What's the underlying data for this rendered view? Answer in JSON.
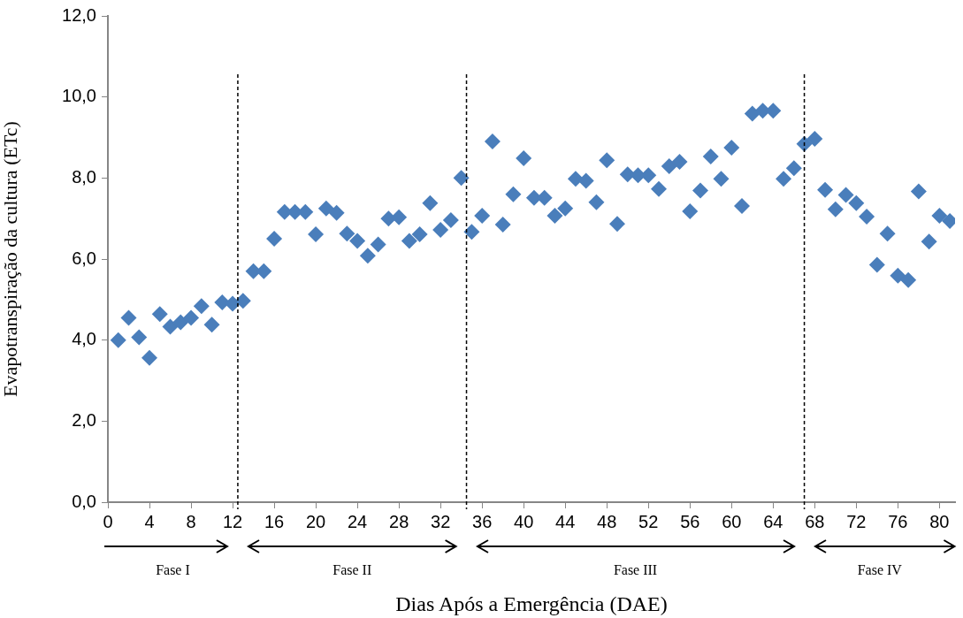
{
  "chart_data": {
    "type": "scatter",
    "xlabel": "Dias Após a Emergência (DAE)",
    "ylabel": "Evapotranspiração da cultura (ETc)",
    "x": [
      1,
      2,
      3,
      4,
      5,
      6,
      7,
      8,
      9,
      10,
      11,
      12,
      13,
      14,
      15,
      16,
      17,
      18,
      19,
      20,
      21,
      22,
      23,
      24,
      25,
      26,
      27,
      28,
      29,
      30,
      31,
      32,
      33,
      34,
      35,
      36,
      37,
      38,
      39,
      40,
      41,
      42,
      43,
      44,
      45,
      46,
      47,
      48,
      49,
      50,
      51,
      52,
      53,
      54,
      55,
      56,
      57,
      58,
      59,
      60,
      61,
      62,
      63,
      64,
      65,
      66,
      67,
      68,
      69,
      70,
      71,
      72,
      73,
      74,
      75,
      76,
      77,
      78,
      79,
      80,
      81
    ],
    "values": [
      4.0,
      4.55,
      4.07,
      3.56,
      4.64,
      4.33,
      4.44,
      4.55,
      4.84,
      4.38,
      4.93,
      4.9,
      4.97,
      5.7,
      5.7,
      6.5,
      7.16,
      7.16,
      7.16,
      6.61,
      7.25,
      7.14,
      6.63,
      6.45,
      6.08,
      6.36,
      7.0,
      7.03,
      6.45,
      6.61,
      7.38,
      6.72,
      6.96,
      8.0,
      6.67,
      7.07,
      8.9,
      6.85,
      7.6,
      8.49,
      7.51,
      7.51,
      7.07,
      7.25,
      7.98,
      7.93,
      7.4,
      8.44,
      6.87,
      8.09,
      8.07,
      8.07,
      7.73,
      8.29,
      8.4,
      7.18,
      7.69,
      8.53,
      7.98,
      8.75,
      7.31,
      9.59,
      9.66,
      9.66,
      7.98,
      8.24,
      8.84,
      8.97,
      7.71,
      7.23,
      7.58,
      7.38,
      7.05,
      5.86,
      6.63,
      5.59,
      5.48,
      7.67,
      6.43,
      7.07,
      6.94
    ],
    "color": "#4a7ebb",
    "marker": "diamond",
    "grid": false,
    "legend": false,
    "xlim": [
      0,
      81.5
    ],
    "xticks": [
      0,
      4,
      8,
      12,
      16,
      20,
      24,
      28,
      32,
      36,
      40,
      44,
      48,
      52,
      56,
      60,
      64,
      68,
      72,
      76,
      80
    ],
    "ylim": [
      0,
      12
    ],
    "yticks": [
      {
        "value": 0,
        "label": "0,0"
      },
      {
        "value": 2,
        "label": "2,0"
      },
      {
        "value": 4,
        "label": "4,0"
      },
      {
        "value": 6,
        "label": "6,0"
      },
      {
        "value": 8,
        "label": "8,0"
      },
      {
        "value": 10,
        "label": "10,0"
      },
      {
        "value": 12,
        "label": "12,0"
      }
    ],
    "ref_lines": [
      {
        "axis": "x",
        "value": 12.5,
        "color": "#000000",
        "line_style": "dashed"
      },
      {
        "axis": "x",
        "value": 34.5,
        "color": "#000000",
        "line_style": "dashed"
      },
      {
        "axis": "x",
        "value": 67,
        "color": "#000000",
        "line_style": "dashed"
      }
    ],
    "annotations": [
      "Fase I",
      "Fase II",
      "Fase III",
      "Fase IV"
    ]
  }
}
